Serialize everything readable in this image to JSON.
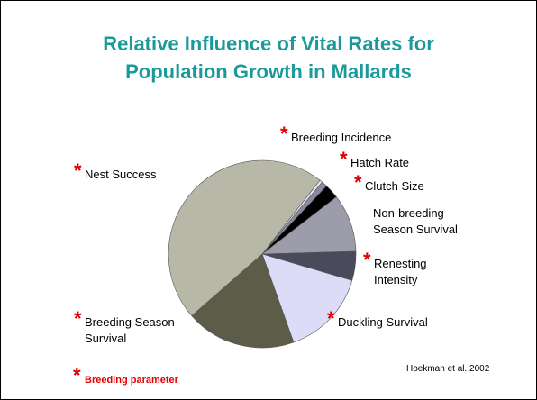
{
  "chart_data": {
    "type": "pie",
    "title": [
      "Relative Influence of Vital Rates for",
      "Population Growth in Mallards"
    ],
    "categories": [
      "Breeding Incidence",
      "Hatch Rate",
      "Clutch Size",
      "Non-breeding Season Survival",
      "Renesting Intensity",
      "Duckling Survival",
      "Breeding Season Survival",
      "Nest Success"
    ],
    "values": [
      0.5,
      1,
      2.5,
      10,
      5,
      15,
      19,
      47
    ],
    "colors": [
      "#e8e8f0",
      "#8a8aa0",
      "#000000",
      "#9c9cab",
      "#4a4a5a",
      "#dcdcf8",
      "#5c5c48",
      "#b8b8a8"
    ],
    "starred": [
      true,
      true,
      true,
      false,
      true,
      true,
      true,
      true
    ],
    "marker": "*",
    "marker_legend": "Breeding parameter",
    "source": "Hoekman et al. 2002"
  }
}
